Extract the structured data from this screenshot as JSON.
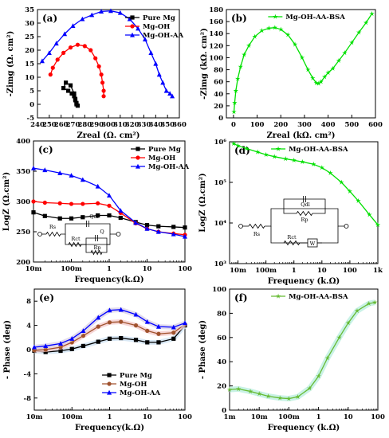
{
  "figure": {
    "panels": [
      "(a)",
      "(b)",
      "(c)",
      "(d)",
      "(e)",
      "(f)"
    ]
  },
  "chart_data": [
    {
      "panel": "(a)",
      "type": "scatter",
      "xlabel": "Zreal (Ω. cm²)",
      "ylabel": "-Zimg (Ω. cm²)",
      "xlim": [
        240,
        360
      ],
      "ylim": [
        -5,
        35
      ],
      "xticks": [
        240,
        250,
        260,
        270,
        280,
        290,
        300,
        310,
        320,
        330,
        340,
        350,
        360
      ],
      "yticks": [
        -5,
        0,
        5,
        10,
        15,
        20,
        25,
        30,
        35
      ],
      "legend": "top-right",
      "series": [
        {
          "name": "Pure Mg",
          "color": "#000000",
          "marker": "square",
          "x": [
            273,
            272,
            271,
            268,
            264,
            262,
            266,
            269,
            271,
            272,
            273,
            274
          ],
          "y": [
            0,
            2,
            4,
            7,
            8,
            6,
            5,
            4,
            3,
            1.5,
            0.5,
            -0.5
          ]
        },
        {
          "name": "Mg-OH",
          "color": "#ff0000",
          "marker": "circle",
          "x": [
            251,
            253,
            257,
            262,
            268,
            274,
            280,
            285,
            289,
            292,
            294,
            295,
            296,
            296
          ],
          "y": [
            11,
            13.5,
            16.5,
            19,
            21,
            22,
            21.5,
            20,
            17,
            14,
            11,
            8,
            5,
            3
          ]
        },
        {
          "name": "Mg-OH-AA",
          "color": "#0000ff",
          "marker": "triangle",
          "x": [
            244,
            250,
            256,
            263,
            270,
            278,
            286,
            294,
            302,
            310,
            318,
            325,
            331,
            336,
            340,
            343,
            346,
            349,
            352,
            354
          ],
          "y": [
            16,
            19,
            22.5,
            26,
            29,
            31.5,
            33,
            34.3,
            34.5,
            33.8,
            31.5,
            28,
            24,
            19,
            15,
            11,
            8,
            5,
            4,
            3
          ]
        }
      ]
    },
    {
      "panel": "(b)",
      "type": "scatter",
      "xlabel": "Zreal (kΩ. cm²)",
      "ylabel": "-Zimg (kΩ. cm²)",
      "xlim": [
        -30,
        600
      ],
      "ylim": [
        0,
        180
      ],
      "xticks": [
        0,
        100,
        200,
        300,
        400,
        500,
        600
      ],
      "yticks": [
        0,
        20,
        40,
        60,
        80,
        100,
        120,
        140,
        160,
        180
      ],
      "legend": "top",
      "series": [
        {
          "name": "Mg-OH-AA-BSA",
          "color": "#00e000",
          "marker": "star",
          "x": [
            2,
            5,
            10,
            18,
            30,
            45,
            65,
            90,
            120,
            150,
            175,
            200,
            230,
            260,
            290,
            315,
            335,
            350,
            360,
            370,
            385,
            400,
            420,
            445,
            470,
            500,
            530,
            560,
            585
          ],
          "y": [
            10,
            25,
            45,
            65,
            85,
            105,
            120,
            135,
            145,
            149,
            150,
            147,
            138,
            122,
            100,
            80,
            66,
            58,
            57,
            60,
            68,
            75,
            82,
            95,
            108,
            125,
            142,
            158,
            173
          ]
        }
      ]
    },
    {
      "panel": "(c)",
      "type": "line",
      "xlabel": "Frequency(k.Ω)",
      "ylabel": "LogZ (Ω.cm²)",
      "xscale": "log",
      "xlim": [
        0.01,
        100
      ],
      "ylim": [
        200,
        400
      ],
      "xtick_labels": [
        "10m",
        "100m",
        "1",
        "10",
        "100"
      ],
      "yticks": [
        200,
        250,
        300,
        350,
        400
      ],
      "legend": "top-right",
      "series": [
        {
          "name": "Pure Mg",
          "color": "#000000",
          "marker": "square",
          "x": [
            0.01,
            0.02,
            0.05,
            0.1,
            0.2,
            0.5,
            1,
            2,
            5,
            10,
            20,
            50,
            100
          ],
          "y": [
            282,
            276,
            272,
            272,
            274,
            277,
            277,
            273,
            266,
            261,
            259,
            258,
            257
          ]
        },
        {
          "name": "Mg-OH",
          "color": "#ff0000",
          "marker": "circle",
          "x": [
            0.01,
            0.02,
            0.05,
            0.1,
            0.2,
            0.5,
            1,
            2,
            5,
            10,
            20,
            50,
            100
          ],
          "y": [
            300,
            298,
            297,
            296,
            296,
            297,
            293,
            281,
            264,
            255,
            250,
            247,
            245
          ]
        },
        {
          "name": "Mg-OH-AA",
          "color": "#0000ff",
          "marker": "triangle",
          "x": [
            0.01,
            0.02,
            0.05,
            0.1,
            0.2,
            0.5,
            1,
            2,
            5,
            10,
            20,
            50,
            100
          ],
          "y": [
            355,
            352,
            347,
            343,
            336,
            325,
            310,
            285,
            265,
            255,
            250,
            246,
            242
          ]
        }
      ],
      "inset_circuit": [
        "Rs",
        "Rct",
        "Qdl",
        "Q",
        "Rp"
      ]
    },
    {
      "panel": "(d)",
      "type": "line",
      "xlabel": "Frequency (k.Ω)",
      "ylabel": "LogZ (Ω.cm²)",
      "xscale": "log",
      "yscale": "log",
      "xlim": [
        0.005,
        1000
      ],
      "ylim": [
        1000,
        1000000
      ],
      "xtick_labels": [
        "10m",
        "100m",
        "1",
        "10",
        "100",
        "1k"
      ],
      "ytick_labels": [
        "10³",
        "10⁴",
        "10⁵",
        "10⁶"
      ],
      "legend": "top",
      "series": [
        {
          "name": "Mg-OH-AA-BSA",
          "color": "#00e000",
          "marker": "star",
          "x": [
            0.007,
            0.01,
            0.02,
            0.05,
            0.1,
            0.2,
            0.5,
            1,
            2,
            5,
            10,
            20,
            50,
            100,
            200,
            500,
            1000
          ],
          "y": [
            900000,
            800000,
            680000,
            560000,
            480000,
            430000,
            380000,
            350000,
            320000,
            280000,
            230000,
            170000,
            100000,
            60000,
            35000,
            16000,
            9000
          ]
        }
      ],
      "inset_circuit": [
        "Rs",
        "Qdl",
        "Rp",
        "Rct",
        "W"
      ]
    },
    {
      "panel": "(e)",
      "type": "line",
      "xlabel": "Frequency(k.Ω)",
      "ylabel": "- Phase (deg)",
      "xscale": "log",
      "xlim": [
        0.01,
        100
      ],
      "ylim": [
        -10,
        10
      ],
      "xtick_labels": [
        "10m",
        "100m",
        "1",
        "10",
        "100"
      ],
      "yticks": [
        -8,
        -4,
        0,
        4,
        8
      ],
      "legend": "bottom-center",
      "series": [
        {
          "name": "Pure Mg",
          "color": "#000000",
          "marker": "square",
          "x": [
            0.01,
            0.02,
            0.05,
            0.1,
            0.2,
            0.5,
            1,
            2,
            5,
            10,
            20,
            50,
            100
          ],
          "y": [
            -0.2,
            -0.4,
            -0.2,
            0.1,
            0.6,
            1.3,
            1.8,
            1.9,
            1.6,
            1.2,
            1.2,
            1.8,
            4
          ]
        },
        {
          "name": "Mg-OH",
          "color": "#a0522d",
          "marker": "circle",
          "x": [
            0.01,
            0.02,
            0.05,
            0.1,
            0.2,
            0.5,
            1,
            2,
            5,
            10,
            20,
            50,
            100
          ],
          "y": [
            -0.1,
            0,
            0.4,
            1.2,
            2.3,
            3.8,
            4.5,
            4.6,
            4.0,
            3.1,
            2.6,
            2.8,
            4.2
          ]
        },
        {
          "name": "Mg-OH-AA",
          "color": "#0000ff",
          "marker": "triangle",
          "x": [
            0.01,
            0.02,
            0.05,
            0.1,
            0.2,
            0.5,
            1,
            2,
            5,
            10,
            20,
            50,
            100
          ],
          "y": [
            0.4,
            0.6,
            1.0,
            1.8,
            3.1,
            5.3,
            6.5,
            6.6,
            5.8,
            4.6,
            3.8,
            3.7,
            4.4
          ]
        }
      ]
    },
    {
      "panel": "(f)",
      "type": "line",
      "xlabel": "Frequency (k.Ω)",
      "ylabel": "- Phase (deg)",
      "xscale": "log",
      "xlim": [
        0.001,
        100
      ],
      "ylim": [
        0,
        100
      ],
      "xtick_labels": [
        "1m",
        "10m",
        "100m",
        "1",
        "10",
        "100"
      ],
      "yticks": [
        0,
        20,
        40,
        60,
        80,
        100
      ],
      "legend": "top",
      "series": [
        {
          "name": "Mg-OH-AA-BSA",
          "color": "#66bb33",
          "marker": "star",
          "x": [
            0.001,
            0.002,
            0.005,
            0.01,
            0.02,
            0.05,
            0.1,
            0.2,
            0.5,
            1,
            2,
            5,
            10,
            20,
            50,
            80
          ],
          "y": [
            17,
            17.5,
            15.5,
            13.5,
            11.5,
            10,
            9.5,
            11,
            18,
            28,
            43,
            60,
            72,
            82,
            88,
            89
          ]
        }
      ]
    }
  ]
}
